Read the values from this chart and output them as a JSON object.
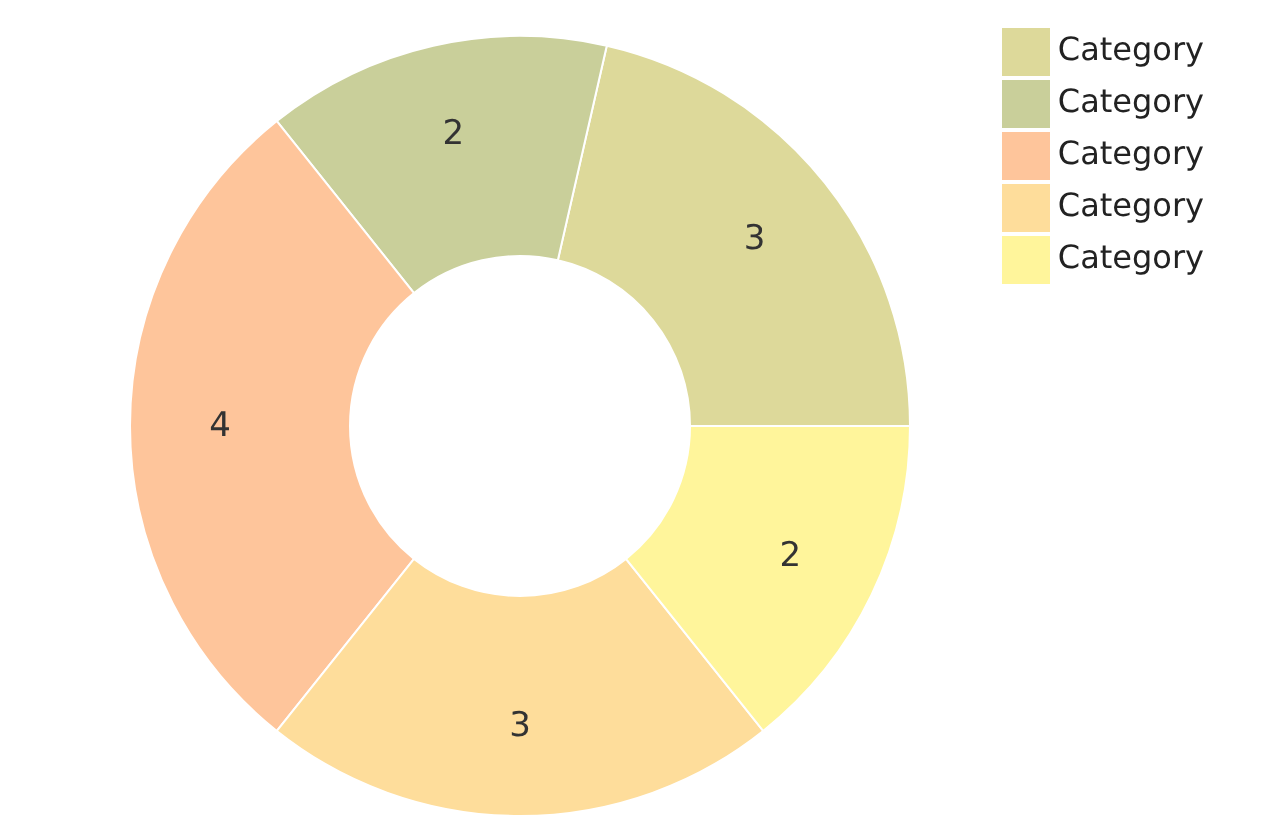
{
  "chart_data": {
    "type": "donut",
    "categories": [
      "Category",
      "Category",
      "Category",
      "Category",
      "Category"
    ],
    "values": [
      3,
      2,
      4,
      3,
      2
    ],
    "colors": [
      "#ddd99a",
      "#c9cf9a",
      "#fec59b",
      "#fedd9b",
      "#fff59b"
    ],
    "data_labels": true,
    "legend": "top right"
  }
}
